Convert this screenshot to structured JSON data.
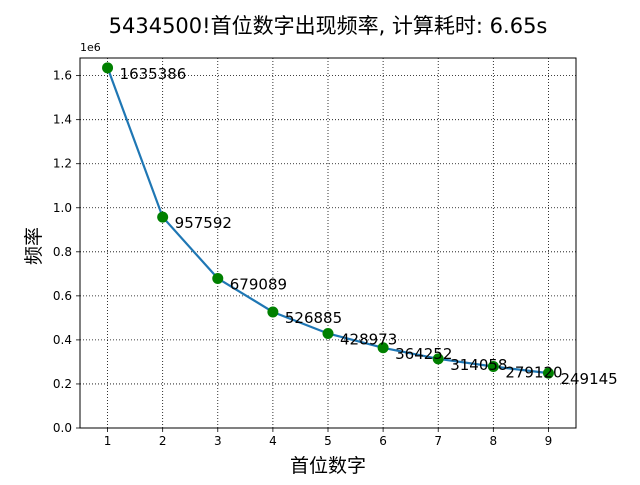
{
  "chart_data": {
    "type": "line",
    "title": "5434500!首位数字出现频率, 计算耗时: 6.65s",
    "xlabel": "首位数字",
    "ylabel": "频率",
    "y_multiplier_label": "1e6",
    "x": [
      1,
      2,
      3,
      4,
      5,
      6,
      7,
      8,
      9
    ],
    "values": [
      1635386,
      957592,
      679089,
      526885,
      428973,
      364252,
      314058,
      279120,
      249145
    ],
    "data_labels": [
      "1635386",
      "957592",
      "679089",
      "526885",
      "428973",
      "364252",
      "314058",
      "279120",
      "249145"
    ],
    "x_ticks": [
      "1",
      "2",
      "3",
      "4",
      "5",
      "6",
      "7",
      "8",
      "9"
    ],
    "y_ticks": [
      "0.0",
      "0.2",
      "0.4",
      "0.6",
      "0.8",
      "1.0",
      "1.2",
      "1.4",
      "1.6"
    ],
    "xlim": [
      0.5,
      9.5
    ],
    "ylim": [
      0,
      1680000
    ],
    "grid": true,
    "line_color": "#1f77b4",
    "marker_color": "#008000"
  }
}
